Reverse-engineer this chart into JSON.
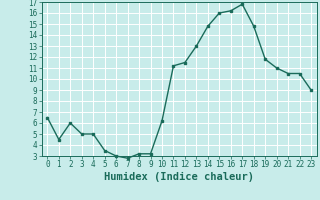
{
  "x": [
    0,
    1,
    2,
    3,
    4,
    5,
    6,
    7,
    8,
    9,
    10,
    11,
    12,
    13,
    14,
    15,
    16,
    17,
    18,
    19,
    20,
    21,
    22,
    23
  ],
  "y": [
    6.5,
    4.5,
    6.0,
    5.0,
    5.0,
    3.5,
    3.0,
    2.8,
    3.2,
    3.2,
    6.2,
    11.2,
    11.5,
    13.0,
    14.8,
    16.0,
    16.2,
    16.8,
    14.8,
    11.8,
    11.0,
    10.5,
    10.5,
    9.0
  ],
  "line_color": "#1a6b5a",
  "marker": "s",
  "marker_size": 2,
  "bg_color": "#c8ecea",
  "grid_color": "#ffffff",
  "xlabel": "Humidex (Indice chaleur)",
  "ylim": [
    3,
    17
  ],
  "xlim": [
    -0.5,
    23.5
  ],
  "yticks": [
    3,
    4,
    5,
    6,
    7,
    8,
    9,
    10,
    11,
    12,
    13,
    14,
    15,
    16,
    17
  ],
  "xticks": [
    0,
    1,
    2,
    3,
    4,
    5,
    6,
    7,
    8,
    9,
    10,
    11,
    12,
    13,
    14,
    15,
    16,
    17,
    18,
    19,
    20,
    21,
    22,
    23
  ],
  "tick_color": "#1a6b5a",
  "label_color": "#1a6b5a",
  "tick_fontsize": 5.5,
  "xlabel_fontsize": 7.5,
  "line_width": 1.0
}
